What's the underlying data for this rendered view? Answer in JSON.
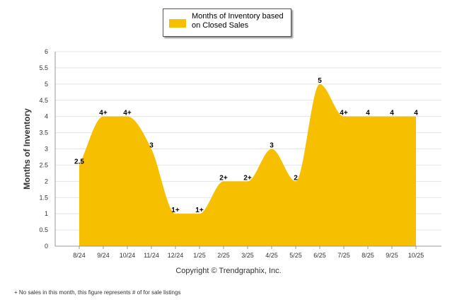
{
  "legend": {
    "label_line1": "Months of Inventory based",
    "label_line2": "on Closed Sales"
  },
  "copyright": "Copyright © Trendgraphix, Inc.",
  "footnote": "+ No sales in this month, this figure represents # of for sale listings",
  "colors": {
    "area": "#F6C000",
    "grid": "#e4e4e4",
    "axis": "#999999"
  },
  "chart_data": {
    "type": "area",
    "title": "",
    "xlabel": "",
    "ylabel": "Months of Inventory",
    "ylim": [
      0,
      6
    ],
    "yticks": [
      "0",
      "0.5",
      "1",
      "1.5",
      "2",
      "2.5",
      "3",
      "3.5",
      "4",
      "4.5",
      "5",
      "5.5",
      "6"
    ],
    "grid": true,
    "legend_position": "top-center",
    "categories": [
      "8/24",
      "9/24",
      "10/24",
      "11/24",
      "12/24",
      "1/25",
      "2/25",
      "3/25",
      "4/25",
      "5/25",
      "6/25",
      "7/25",
      "8/25",
      "9/25",
      "10/25"
    ],
    "series": [
      {
        "name": "Months of Inventory based on Closed Sales",
        "values": [
          2.5,
          4,
          4,
          3,
          1,
          1,
          2,
          2,
          3,
          2,
          5,
          4,
          4,
          4,
          4
        ],
        "labels": [
          "2.5",
          "4+",
          "4+",
          "3",
          "1+",
          "1+",
          "2+",
          "2+",
          "3",
          "2",
          "5",
          "4+",
          "4",
          "4",
          "4"
        ]
      }
    ]
  }
}
